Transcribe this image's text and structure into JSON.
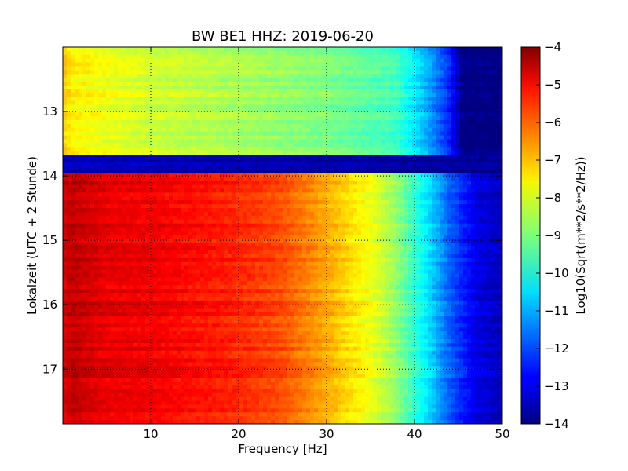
{
  "chart_data": {
    "type": "heatmap",
    "title": "BW BE1 HHZ: 2019-06-20",
    "xlabel": "Frequency [Hz]",
    "ylabel": "Lokalzeit (UTC + 2 Stunde)",
    "colorbar_label": "Log10(Sqrt(m**2/s**2/Hz))",
    "colormap": "jet",
    "xlim": [
      0,
      50
    ],
    "ylim": [
      17.85,
      12.0
    ],
    "clim": [
      -14,
      -4
    ],
    "xticks": [
      10,
      20,
      30,
      40,
      50
    ],
    "yticks": [
      13,
      14,
      15,
      16,
      17
    ],
    "cbar_ticks": [
      -4,
      -5,
      -6,
      -7,
      -8,
      -9,
      -10,
      -11,
      -12,
      -13,
      -14
    ],
    "grid": true,
    "segments": [
      {
        "from_hour": 12.0,
        "to_hour": 13.67,
        "profile_freq": [
          0,
          1,
          5,
          10,
          20,
          30,
          38,
          41,
          44,
          45.5,
          50
        ],
        "profile_value": [
          -7.2,
          -7.6,
          -7.9,
          -8.2,
          -8.6,
          -9.0,
          -9.6,
          -10.8,
          -12.4,
          -14,
          -14
        ]
      },
      {
        "from_hour": 13.67,
        "to_hour": 13.96,
        "profile_freq": [
          0,
          50
        ],
        "profile_value": [
          -13.4,
          -13.8
        ]
      },
      {
        "from_hour": 13.96,
        "to_hour": 17.85,
        "profile_freq": [
          0,
          1,
          5,
          10,
          20,
          25,
          30,
          35,
          38,
          41,
          44,
          47,
          50
        ],
        "profile_value": [
          -4.9,
          -4.6,
          -5.0,
          -5.1,
          -5.6,
          -6.0,
          -6.9,
          -7.9,
          -8.8,
          -10.2,
          -11.8,
          -13.0,
          -13.4
        ]
      }
    ]
  }
}
